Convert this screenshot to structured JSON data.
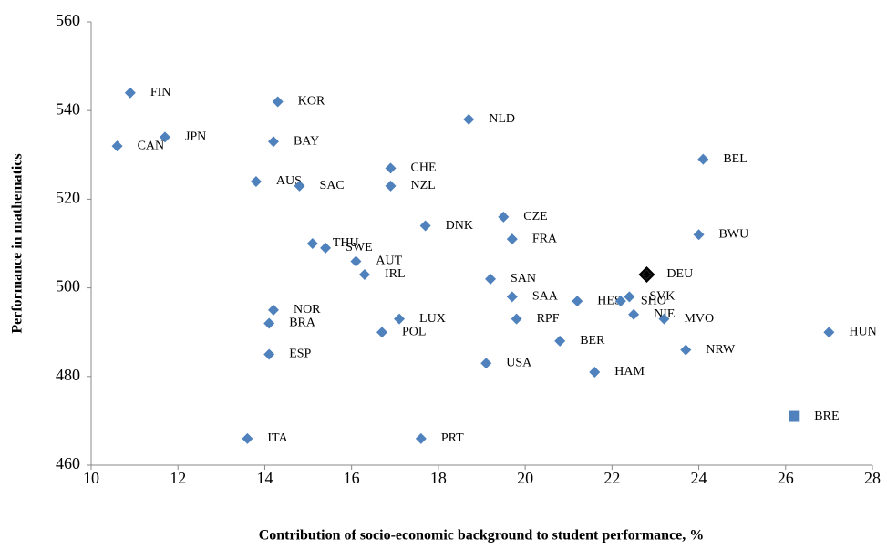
{
  "chart_data": {
    "type": "scatter",
    "x_label": "Contribution of socio-economic background to student performance, %",
    "y_label": "Performance in mathematics",
    "xlim": [
      10,
      28
    ],
    "xticks": [
      10,
      12,
      14,
      16,
      18,
      20,
      22,
      24,
      26,
      28
    ],
    "ylim": [
      460,
      560
    ],
    "yticks": [
      460,
      480,
      500,
      520,
      540,
      560
    ],
    "color": "#4f81bd",
    "points": [
      {
        "label": "FIN",
        "x": 10.9,
        "y": 544,
        "marker": "diamond"
      },
      {
        "label": "JPN",
        "x": 11.7,
        "y": 534,
        "marker": "diamond"
      },
      {
        "label": "CAN",
        "x": 10.6,
        "y": 532,
        "marker": "diamond"
      },
      {
        "label": "KOR",
        "x": 14.3,
        "y": 542,
        "marker": "diamond"
      },
      {
        "label": "BAY",
        "x": 14.2,
        "y": 533,
        "marker": "diamond"
      },
      {
        "label": "AUS",
        "x": 13.8,
        "y": 524,
        "marker": "diamond"
      },
      {
        "label": "SAC",
        "x": 14.8,
        "y": 523,
        "marker": "diamond"
      },
      {
        "label": "CHE",
        "x": 16.9,
        "y": 527,
        "marker": "diamond"
      },
      {
        "label": "NZL",
        "x": 16.9,
        "y": 523,
        "marker": "diamond"
      },
      {
        "label": "NLD",
        "x": 18.7,
        "y": 538,
        "marker": "diamond"
      },
      {
        "label": "BEL",
        "x": 24.1,
        "y": 529,
        "marker": "diamond"
      },
      {
        "label": "CZE",
        "x": 19.5,
        "y": 516,
        "marker": "diamond"
      },
      {
        "label": "DNK",
        "x": 17.7,
        "y": 514,
        "marker": "diamond"
      },
      {
        "label": "FRA",
        "x": 19.7,
        "y": 511,
        "marker": "diamond"
      },
      {
        "label": "BWU",
        "x": 24.0,
        "y": 512,
        "marker": "diamond"
      },
      {
        "label": "THU",
        "x": 15.1,
        "y": 510,
        "marker": "diamond"
      },
      {
        "label": "SWE",
        "x": 15.4,
        "y": 509,
        "marker": "diamond"
      },
      {
        "label": "AUT",
        "x": 16.1,
        "y": 506,
        "marker": "diamond"
      },
      {
        "label": "IRL",
        "x": 16.3,
        "y": 503,
        "marker": "diamond"
      },
      {
        "label": "SAN",
        "x": 19.2,
        "y": 502,
        "marker": "diamond"
      },
      {
        "label": "DEU",
        "x": 22.8,
        "y": 503,
        "marker": "diamond-outlined"
      },
      {
        "label": "SAA",
        "x": 19.7,
        "y": 498,
        "marker": "diamond"
      },
      {
        "label": "HES",
        "x": 21.2,
        "y": 497,
        "marker": "diamond"
      },
      {
        "label": "SVK",
        "x": 22.4,
        "y": 498,
        "marker": "diamond"
      },
      {
        "label": "SHO",
        "x": 22.2,
        "y": 497,
        "marker": "diamond"
      },
      {
        "label": "NIE",
        "x": 22.5,
        "y": 494,
        "marker": "diamond"
      },
      {
        "label": "MVO",
        "x": 23.2,
        "y": 493,
        "marker": "diamond"
      },
      {
        "label": "NOR",
        "x": 14.2,
        "y": 495,
        "marker": "diamond"
      },
      {
        "label": "BRA",
        "x": 14.1,
        "y": 492,
        "marker": "diamond"
      },
      {
        "label": "LUX",
        "x": 17.1,
        "y": 493,
        "marker": "diamond"
      },
      {
        "label": "POL",
        "x": 16.7,
        "y": 490,
        "marker": "diamond"
      },
      {
        "label": "RPF",
        "x": 19.8,
        "y": 493,
        "marker": "diamond"
      },
      {
        "label": "BER",
        "x": 20.8,
        "y": 488,
        "marker": "diamond"
      },
      {
        "label": "HUN",
        "x": 27.0,
        "y": 490,
        "marker": "diamond"
      },
      {
        "label": "NRW",
        "x": 23.7,
        "y": 486,
        "marker": "diamond"
      },
      {
        "label": "ESP",
        "x": 14.1,
        "y": 485,
        "marker": "diamond"
      },
      {
        "label": "USA",
        "x": 19.1,
        "y": 483,
        "marker": "diamond"
      },
      {
        "label": "HAM",
        "x": 21.6,
        "y": 481,
        "marker": "diamond"
      },
      {
        "label": "BRE",
        "x": 26.2,
        "y": 471,
        "marker": "square"
      },
      {
        "label": "ITA",
        "x": 13.6,
        "y": 466,
        "marker": "diamond"
      },
      {
        "label": "PRT",
        "x": 17.6,
        "y": 466,
        "marker": "diamond"
      }
    ]
  }
}
